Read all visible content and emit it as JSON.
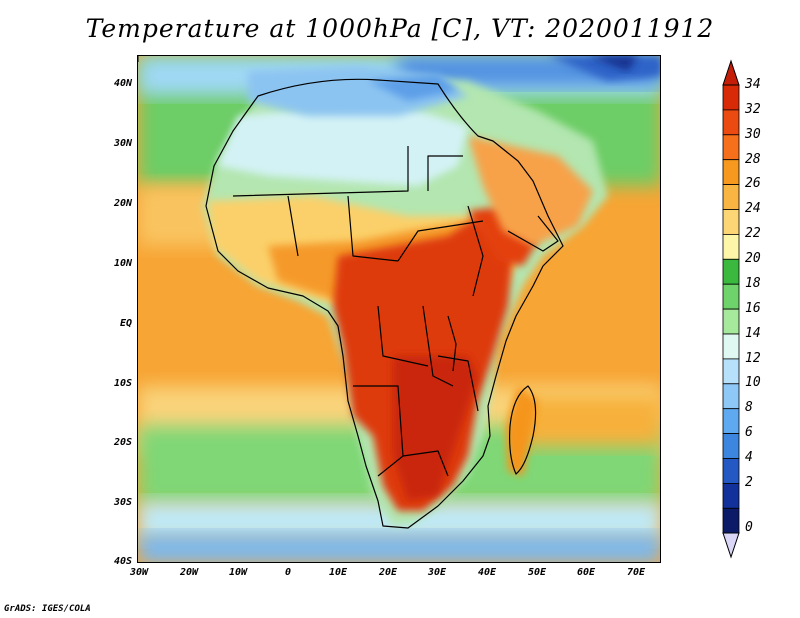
{
  "title": "Temperature at 1000hPa [C], VT: 2020011912",
  "credit": "GrADS: IGES/COLA",
  "map": {
    "region": "Africa",
    "lat_range": [
      -40,
      45
    ],
    "lon_range": [
      -30,
      75
    ],
    "lat_labels": [
      "40N",
      "30N",
      "20N",
      "10N",
      "EQ",
      "10S",
      "20S",
      "30S",
      "40S"
    ],
    "lon_labels": [
      "30W",
      "20W",
      "10W",
      "0",
      "10E",
      "20E",
      "30E",
      "40E",
      "50E",
      "60E",
      "70E"
    ]
  },
  "colorbar": {
    "units": "C",
    "levels": [
      "34",
      "32",
      "30",
      "28",
      "26",
      "24",
      "22",
      "20",
      "18",
      "16",
      "14",
      "12",
      "10",
      "8",
      "6",
      "4",
      "2",
      "0"
    ],
    "colors": [
      "#d92a08",
      "#eb4a10",
      "#f6701c",
      "#f7991e",
      "#f9b542",
      "#fcd574",
      "#fdf6a8",
      "#3ab93e",
      "#6dd36a",
      "#a7e99c",
      "#dff8f2",
      "#b7e0fa",
      "#8ec8f7",
      "#5ea9ef",
      "#3d86e0",
      "#2459c4",
      "#12319a",
      "#0c1b68"
    ],
    "over_color": "#c41e08",
    "under_color": "#d9d6f8"
  }
}
